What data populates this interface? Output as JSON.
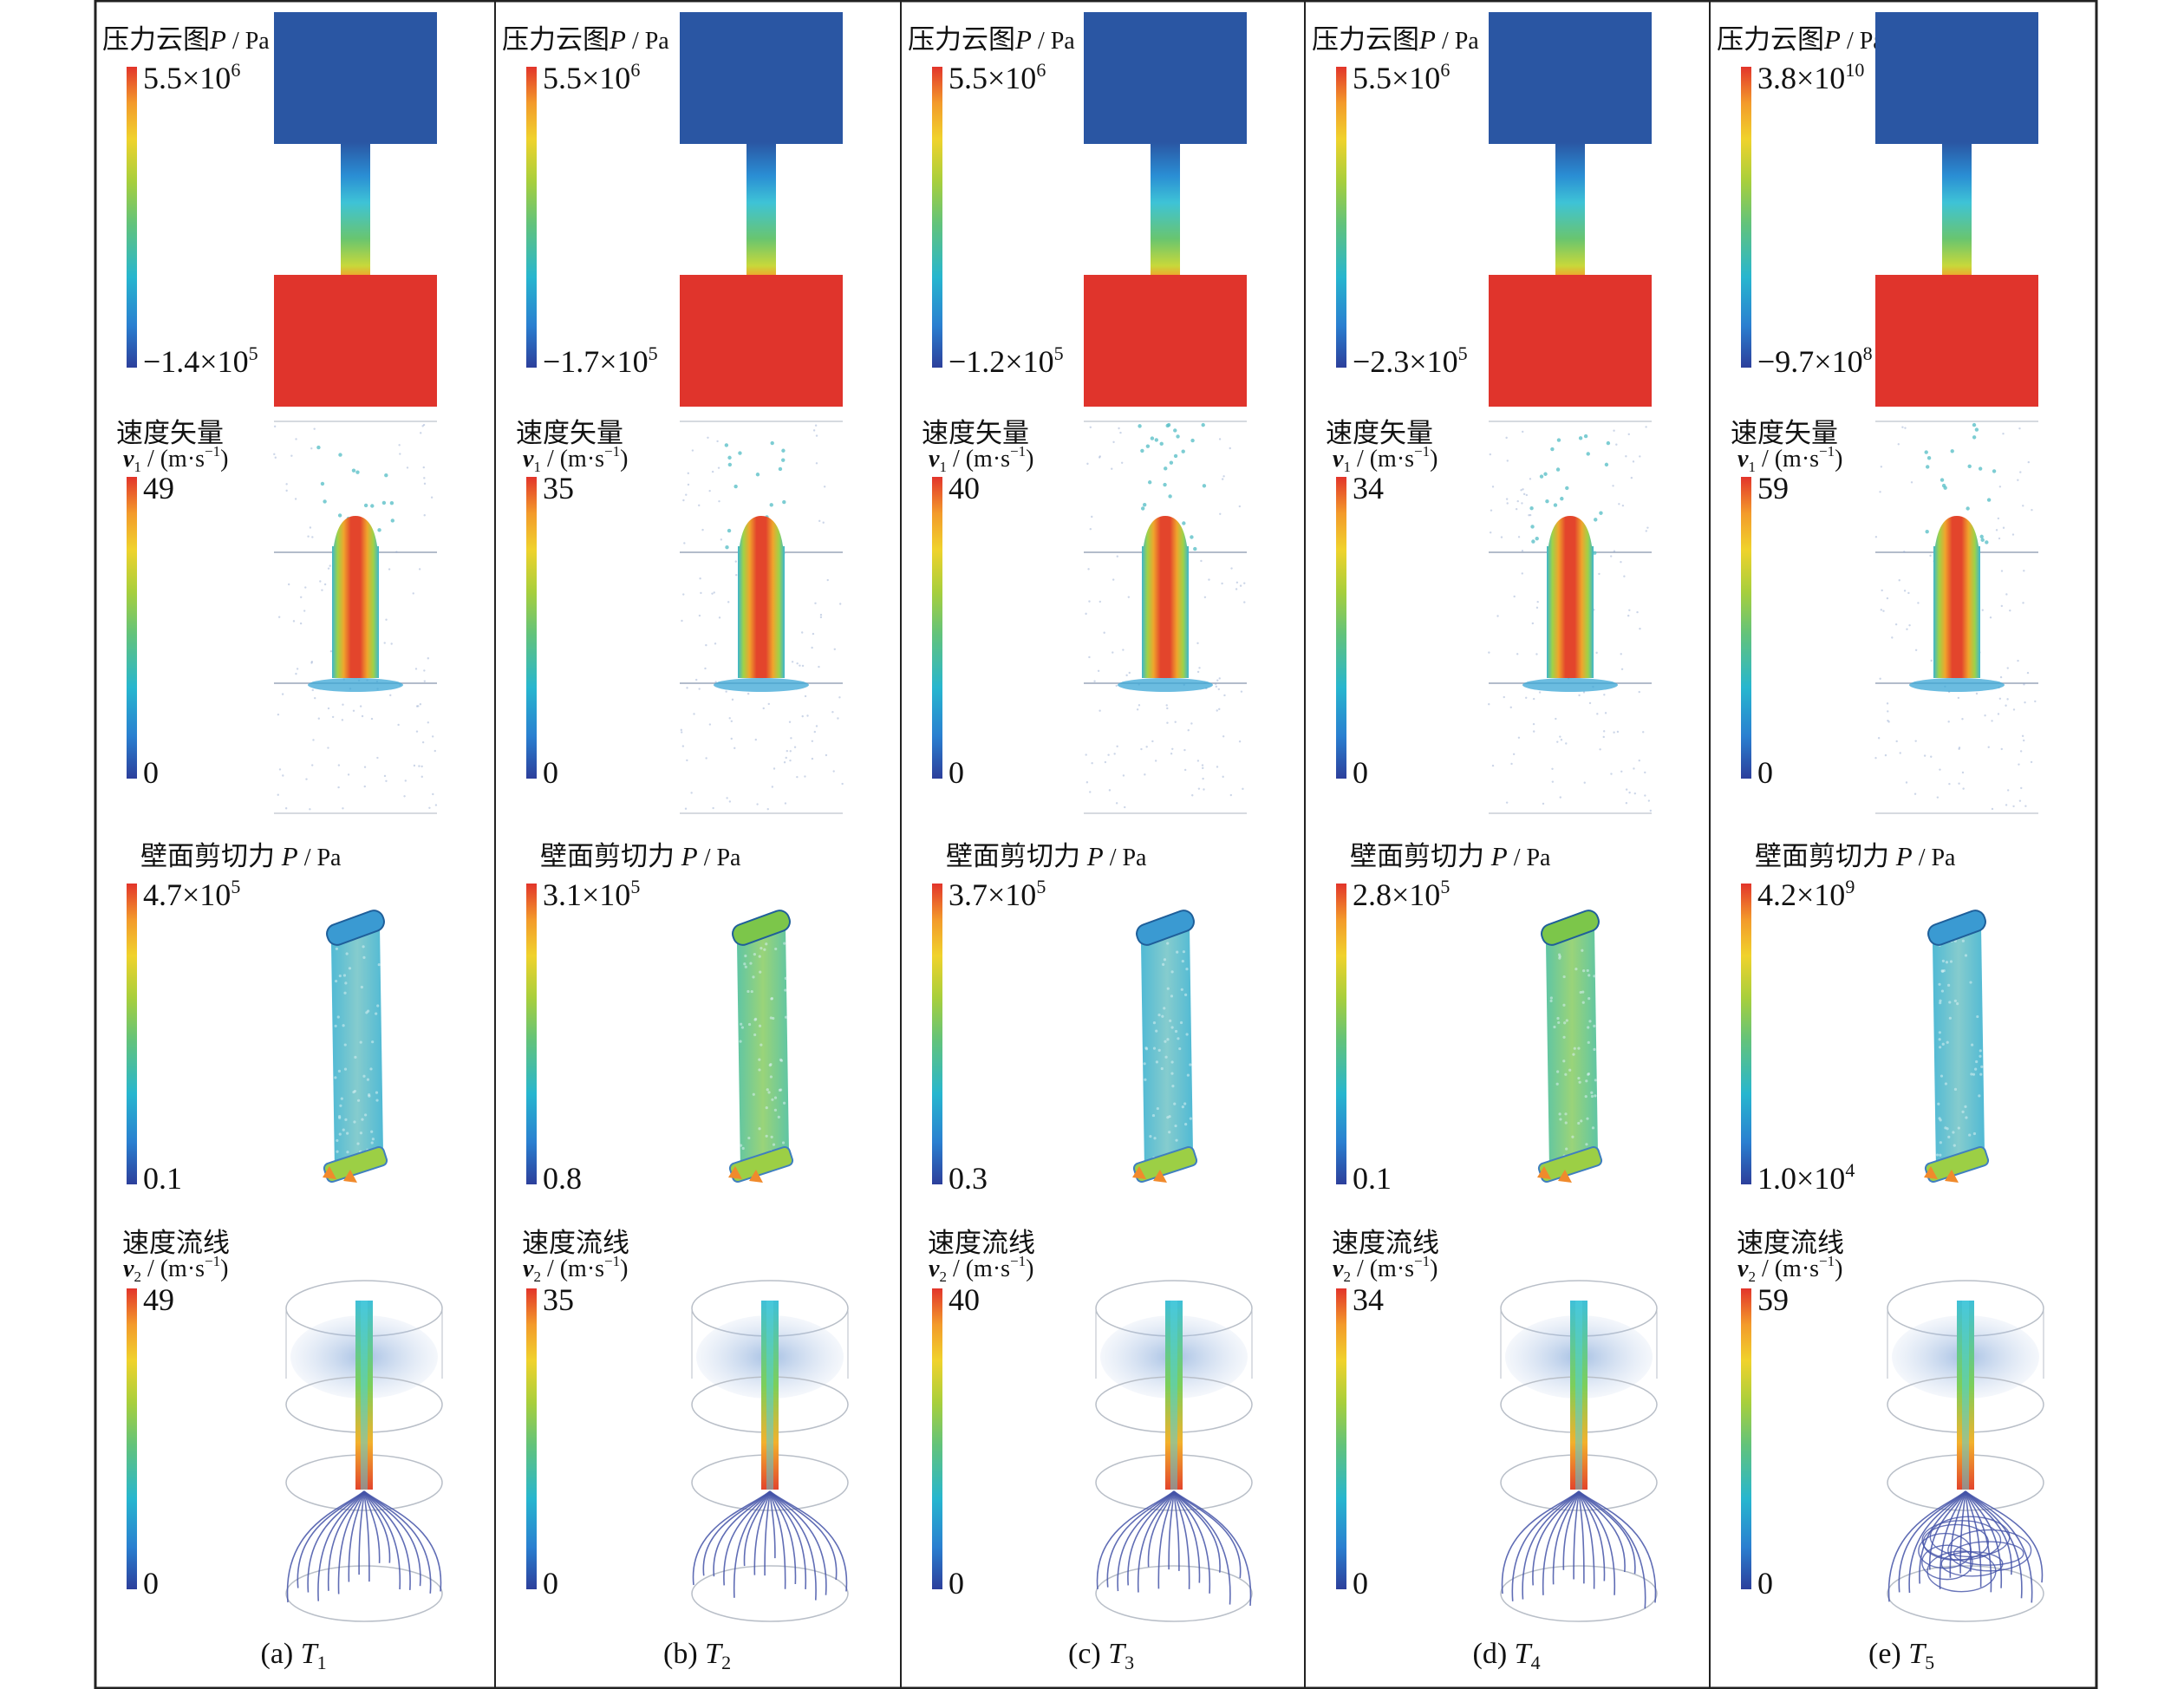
{
  "panels": [
    {
      "id": "a",
      "caption_prefix": "(a) ",
      "caption_var": "T",
      "caption_sub": "1",
      "pressure": {
        "max": "5.5×10",
        "max_exp": "6",
        "min": "−1.4×10",
        "min_exp": "5"
      },
      "velocity_vector": {
        "max": "49",
        "min": "0"
      },
      "wall_shear": {
        "max": "4.7×10",
        "max_exp": "5",
        "min": "0.1",
        "min_exp": ""
      },
      "streamline": {
        "max": "49",
        "min": "0"
      }
    },
    {
      "id": "b",
      "caption_prefix": "(b) ",
      "caption_var": "T",
      "caption_sub": "2",
      "pressure": {
        "max": "5.5×10",
        "max_exp": "6",
        "min": "−1.7×10",
        "min_exp": "5"
      },
      "velocity_vector": {
        "max": "35",
        "min": "0"
      },
      "wall_shear": {
        "max": "3.1×10",
        "max_exp": "5",
        "min": "0.8",
        "min_exp": ""
      },
      "streamline": {
        "max": "35",
        "min": "0"
      }
    },
    {
      "id": "c",
      "caption_prefix": "(c) ",
      "caption_var": "T",
      "caption_sub": "3",
      "pressure": {
        "max": "5.5×10",
        "max_exp": "6",
        "min": "−1.2×10",
        "min_exp": "5"
      },
      "velocity_vector": {
        "max": "40",
        "min": "0"
      },
      "wall_shear": {
        "max": "3.7×10",
        "max_exp": "5",
        "min": "0.3",
        "min_exp": ""
      },
      "streamline": {
        "max": "40",
        "min": "0"
      }
    },
    {
      "id": "d",
      "caption_prefix": "(d) ",
      "caption_var": "T",
      "caption_sub": "4",
      "pressure": {
        "max": "5.5×10",
        "max_exp": "6",
        "min": "−2.3×10",
        "min_exp": "5"
      },
      "velocity_vector": {
        "max": "34",
        "min": "0"
      },
      "wall_shear": {
        "max": "2.8×10",
        "max_exp": "5",
        "min": "0.1",
        "min_exp": ""
      },
      "streamline": {
        "max": "34",
        "min": "0"
      }
    },
    {
      "id": "e",
      "caption_prefix": "(e) ",
      "caption_var": "T",
      "caption_sub": "5",
      "pressure": {
        "max": "3.8×10",
        "max_exp": "10",
        "min": "−9.7×10",
        "min_exp": "8"
      },
      "velocity_vector": {
        "max": "59",
        "min": "0"
      },
      "wall_shear": {
        "max": "4.2×10",
        "max_exp": "9",
        "min": "1.0×10",
        "min_exp": "4"
      },
      "streamline": {
        "max": "59",
        "min": "0"
      }
    }
  ],
  "labels": {
    "pressure_title": "压力云图",
    "pressure_var": "P",
    "pressure_unit": " / Pa",
    "vector_title": "速度矢量",
    "vector_var": "v",
    "vector_sub": "1",
    "shear_title": "壁面剪切力 ",
    "shear_var": "P",
    "shear_unit": " / Pa",
    "stream_title": "速度流线",
    "stream_var": "v",
    "stream_sub": "2",
    "unit_open": " / (m·s",
    "unit_exp": "−1",
    "unit_close": ")"
  },
  "colors": {
    "rainbow": [
      "#2c3f9b",
      "#2a7fd0",
      "#27b6cf",
      "#63c37a",
      "#a8cf3c",
      "#f0d22c",
      "#f39a2b",
      "#e2352b"
    ],
    "low_pressure": "#2a56a3",
    "high_pressure": "#e0342c",
    "streamline": "#4453a8"
  }
}
